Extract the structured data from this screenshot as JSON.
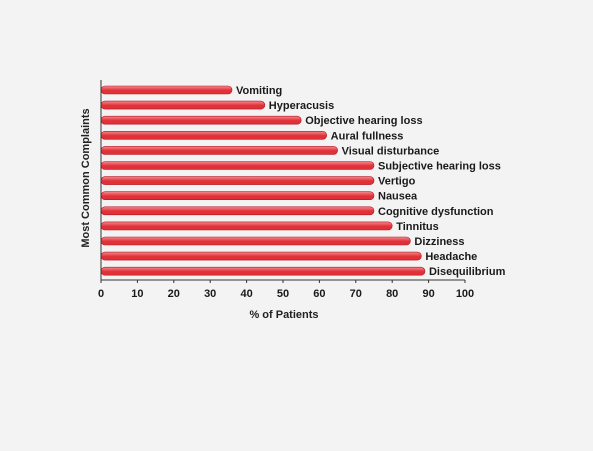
{
  "chart_data": {
    "type": "bar",
    "orientation": "horizontal",
    "title": "",
    "xlabel": "% of Patients",
    "ylabel": "Most Common Complaints",
    "xlim": [
      0,
      100
    ],
    "xticks": [
      "0",
      "10",
      "20",
      "30",
      "40",
      "50",
      "60",
      "70",
      "80",
      "90",
      "100"
    ],
    "categories": [
      "Vomiting",
      "Hyperacusis",
      "Objective hearing loss",
      "Aural fullness",
      "Visual disturbance",
      "Subjective hearing loss",
      "Vertigo",
      "Nausea",
      "Cognitive dysfunction",
      "Tinnitus",
      "Dizziness",
      "Headache",
      "Disequilibrium"
    ],
    "values": [
      36,
      45,
      55,
      62,
      65,
      75,
      75,
      75,
      75,
      80,
      85,
      88,
      89
    ],
    "grid": false,
    "legend": "none",
    "bar_color": "#e03038",
    "bar_highlight_color": "#f58a8f",
    "axis_color": "#333333",
    "background_color": "#f3f3f3"
  }
}
